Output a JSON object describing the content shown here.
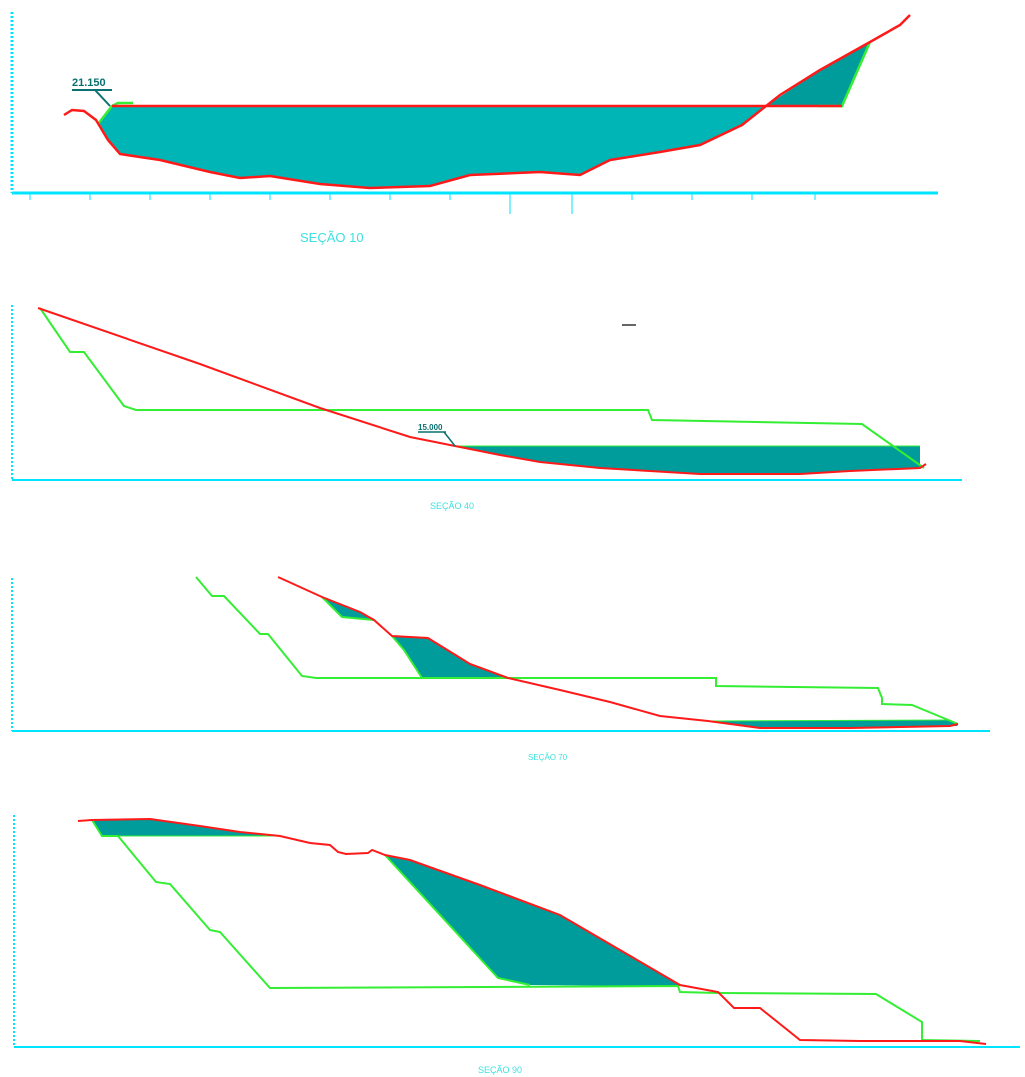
{
  "colors": {
    "axis": "#00e5ff",
    "terrain": "#ff1a1a",
    "design": "#33ee33",
    "cut_fill": "#009c9c",
    "cut_fill_light": "#00b8b8",
    "annotation": "#0a7070"
  },
  "sections": [
    {
      "id": "secao-10",
      "caption": "SEÇÃO 10",
      "elevation_label": "21.150",
      "area_labels": []
    },
    {
      "id": "secao-40",
      "caption": "SEÇÃO 40",
      "elevation_label": "15.000",
      "area_labels": []
    },
    {
      "id": "secao-70",
      "caption": "SEÇÃO 70",
      "elevation_label": "",
      "area_labels": []
    },
    {
      "id": "secao-90",
      "caption": "SEÇÃO 90",
      "elevation_label": "",
      "area_labels": []
    }
  ]
}
